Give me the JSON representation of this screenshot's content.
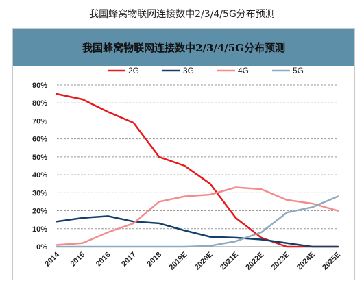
{
  "page_title": "我国蜂窝物联网连接数中2/3/4/5G分布预测",
  "chart_data": {
    "type": "line",
    "title": "我国蜂窝物联网连接数中2/3/4/5G分布预测",
    "xlabel": "",
    "ylabel": "",
    "categories": [
      "2014",
      "2015",
      "2016",
      "2017",
      "2018",
      "2019E",
      "2020E",
      "2021E",
      "2022E",
      "2023E",
      "2024E",
      "2025E"
    ],
    "ylim": [
      0,
      90
    ],
    "yticks": [
      "0%",
      "10%",
      "20%",
      "30%",
      "40%",
      "50%",
      "60%",
      "70%",
      "80%",
      "90%"
    ],
    "grid": "horizontal dashed",
    "legend_position": "top",
    "series": [
      {
        "name": "2G",
        "color": "#e8191c",
        "values": [
          85,
          82,
          75,
          69,
          50,
          45,
          35,
          16,
          5,
          0,
          0,
          0
        ]
      },
      {
        "name": "3G",
        "color": "#12406b",
        "values": [
          14,
          16,
          17,
          14,
          13,
          9,
          5.5,
          5,
          4,
          2,
          0,
          0
        ]
      },
      {
        "name": "4G",
        "color": "#f48c8c",
        "values": [
          1,
          2,
          8,
          13,
          25,
          28,
          29,
          33,
          32,
          26,
          24,
          20
        ]
      },
      {
        "name": "5G",
        "color": "#8fabc0",
        "values": [
          0,
          0,
          0,
          0,
          0,
          0,
          0.5,
          3,
          8,
          19,
          22,
          28
        ]
      }
    ]
  }
}
